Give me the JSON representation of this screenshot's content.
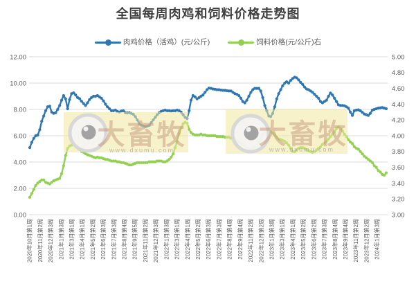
{
  "title": "全国每周肉鸡和饲料价格走势图",
  "watermark": {
    "brand": "大畜牧",
    "url": "www.dxumu.com"
  },
  "chart_data": {
    "type": "line",
    "x_unit": "week",
    "x_tick_labels": [
      "2020年10月第1周",
      "2020年11月第2周",
      "2020年12月第3周",
      "2021年1月第3周",
      "2021年3月第1周",
      "2021年4月第1周",
      "2021年5月第2周",
      "2021年6月第3周",
      "2021年7月第3周",
      "2021年8月第4周",
      "2021年9月第5周",
      "2021年11月第2周",
      "2021年12月第3周",
      "2022年1月第3周",
      "2022年3月第1周",
      "2022年4月第1周",
      "2022年5月第2周",
      "2022年6月第3周",
      "2022年7月第3周",
      "2022年8月第4周",
      "2022年9月第4周",
      "2022年11月第2周",
      "2022年12月第2周",
      "2023年1月第3周",
      "2023年3月第1周",
      "2023年4月第1周",
      "2023年5月第2周",
      "2023年6月第2周",
      "2023年7月第3周",
      "2023年8月第4周",
      "2023年9月第4周",
      "2023年11月第2周",
      "2023年12月第2周",
      "2024年1月第3周"
    ],
    "left_axis": {
      "min": 0,
      "max": 12,
      "ticks": [
        "0.00",
        "2.00",
        "4.00",
        "6.00",
        "8.00",
        "10.00",
        "12.00"
      ]
    },
    "right_axis": {
      "min": 3,
      "max": 5,
      "ticks": [
        "3.00",
        "3.20",
        "3.40",
        "3.60",
        "3.80",
        "4.00",
        "4.20",
        "4.40",
        "4.60",
        "4.80",
        "5.00"
      ]
    },
    "grid": "horizontal",
    "legend_position": "top",
    "colors": {
      "grid": "#d9d9d9",
      "axis_text": "#595959",
      "title_text": "#3f3f3f"
    },
    "series": [
      {
        "name": "肉鸡价格（活鸡）(元/公斤)",
        "axis": "left",
        "color": "#2e77b2",
        "values": [
          5.1,
          5.5,
          5.8,
          6.0,
          6.05,
          6.45,
          7.1,
          7.5,
          7.9,
          8.2,
          8.25,
          7.8,
          7.7,
          7.75,
          8.0,
          8.3,
          8.7,
          9.05,
          8.8,
          8.05,
          8.75,
          9.2,
          9.26,
          9.1,
          8.9,
          8.82,
          8.62,
          8.45,
          8.3,
          8.5,
          8.75,
          8.9,
          9.0,
          9.0,
          9.05,
          8.95,
          8.85,
          8.65,
          8.4,
          8.2,
          8.05,
          7.9,
          7.9,
          7.95,
          7.85,
          7.8,
          7.88,
          7.9,
          7.75,
          7.73,
          7.75,
          7.7,
          7.63,
          7.45,
          7.2,
          6.9,
          6.8,
          6.75,
          6.7,
          6.73,
          6.78,
          7.0,
          7.2,
          7.4,
          7.6,
          7.75,
          7.85,
          7.9,
          7.95,
          7.9,
          7.9,
          7.88,
          7.9,
          7.9,
          7.95,
          7.9,
          7.8,
          7.6,
          7.4,
          7.3,
          7.9,
          8.7,
          9.05,
          8.95,
          8.8,
          8.9,
          9.0,
          9.1,
          9.3,
          9.5,
          9.62,
          9.6,
          9.55,
          9.53,
          9.5,
          9.5,
          9.47,
          9.45,
          9.45,
          9.42,
          9.4,
          9.4,
          9.3,
          9.2,
          9.15,
          9.05,
          8.85,
          8.6,
          8.5,
          8.7,
          9.0,
          9.3,
          9.5,
          9.6,
          9.6,
          9.6,
          9.4,
          8.9,
          8.3,
          7.9,
          7.5,
          7.45,
          7.7,
          8.2,
          8.8,
          9.2,
          9.5,
          9.8,
          10.0,
          10.1,
          10.0,
          10.2,
          10.35,
          10.45,
          10.4,
          10.25,
          10.05,
          9.9,
          9.7,
          9.55,
          9.5,
          9.4,
          9.3,
          9.15,
          9.0,
          8.85,
          8.6,
          8.5,
          8.6,
          8.7,
          9.0,
          9.25,
          9.1,
          8.85,
          8.6,
          8.35,
          8.3,
          8.3,
          8.28,
          8.2,
          8.1,
          7.8,
          7.55,
          7.9,
          7.95,
          7.97,
          7.9,
          7.78,
          7.65,
          7.6,
          7.55,
          7.7,
          7.95,
          8.0,
          8.05,
          8.1,
          8.12,
          8.15,
          8.1,
          8.05
        ]
      },
      {
        "name": "饲料价格(元/公斤)右",
        "axis": "right",
        "color": "#92d050",
        "values": [
          3.22,
          3.27,
          3.32,
          3.37,
          3.4,
          3.42,
          3.44,
          3.44,
          3.41,
          3.4,
          3.39,
          3.41,
          3.43,
          3.44,
          3.45,
          3.46,
          3.52,
          3.62,
          3.75,
          3.84,
          3.87,
          3.88,
          3.89,
          3.88,
          3.85,
          3.83,
          3.8,
          3.79,
          3.77,
          3.76,
          3.75,
          3.74,
          3.73,
          3.72,
          3.73,
          3.72,
          3.72,
          3.71,
          3.7,
          3.7,
          3.69,
          3.68,
          3.68,
          3.68,
          3.67,
          3.67,
          3.66,
          3.66,
          3.65,
          3.64,
          3.63,
          3.63,
          3.64,
          3.65,
          3.66,
          3.66,
          3.66,
          3.66,
          3.66,
          3.66,
          3.67,
          3.67,
          3.67,
          3.67,
          3.68,
          3.68,
          3.68,
          3.67,
          3.67,
          3.68,
          3.7,
          3.73,
          3.77,
          3.85,
          3.93,
          4.03,
          4.1,
          4.15,
          4.17,
          4.16,
          4.08,
          4.04,
          4.02,
          4.01,
          4.01,
          4.01,
          4.02,
          4.01,
          4.01,
          4.0,
          4.0,
          4.0,
          4.0,
          4.0,
          3.99,
          3.99,
          3.99,
          3.99,
          3.98,
          3.98,
          3.98,
          3.97,
          3.97,
          3.96,
          3.94,
          3.92,
          3.9,
          3.89,
          3.87,
          3.85,
          3.84,
          3.83,
          3.84,
          3.86,
          3.89,
          3.92,
          3.95,
          4.02,
          4.05,
          4.06,
          4.06,
          4.05,
          4.03,
          4.01,
          3.98,
          3.96,
          3.95,
          3.94,
          3.93,
          3.91,
          3.88,
          3.84,
          3.8,
          3.8,
          3.82,
          3.84,
          3.85,
          3.85,
          3.84,
          3.82,
          3.81,
          3.8,
          3.79,
          3.8,
          3.82,
          3.84,
          3.86,
          3.89,
          3.91,
          3.93,
          3.96,
          3.99,
          4.02,
          4.05,
          4.09,
          4.11,
          4.09,
          4.06,
          4.02,
          3.99,
          3.95,
          3.92,
          3.9,
          3.86,
          3.84,
          3.83,
          3.8,
          3.77,
          3.74,
          3.72,
          3.7,
          3.68,
          3.66,
          3.62,
          3.6,
          3.56,
          3.54,
          3.51,
          3.5,
          3.53
        ]
      }
    ]
  }
}
